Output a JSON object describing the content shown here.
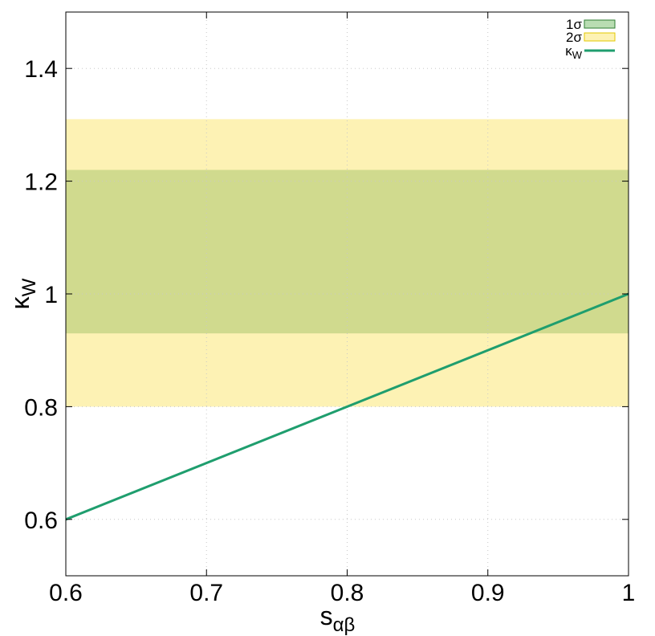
{
  "chart_data": {
    "type": "line",
    "xlabel": {
      "base": "s",
      "sub": "αβ"
    },
    "ylabel": {
      "base": "κ",
      "sub": "W"
    },
    "xlim": [
      0.6,
      1.0
    ],
    "ylim": [
      0.5,
      1.5
    ],
    "xticks": [
      0.6,
      0.7,
      0.8,
      0.9,
      1.0
    ],
    "xtick_labels": [
      "0.6",
      "0.7",
      "0.8",
      "0.9",
      "1"
    ],
    "yticks": [
      0.6,
      0.8,
      1.0,
      1.2,
      1.4
    ],
    "ytick_labels": [
      "0.6",
      "0.8",
      "1",
      "1.2",
      "1.4"
    ],
    "grid": true,
    "legend_position": "top-right",
    "bands": [
      {
        "name": "2σ",
        "y_low": 0.8,
        "y_high": 1.31,
        "color": "#fdf2b4"
      },
      {
        "name": "1σ",
        "y_low": 0.93,
        "y_high": 1.22,
        "color": "#d0da8e",
        "legend_color": "#b9ddb2"
      }
    ],
    "series": [
      {
        "name": "κW",
        "legend_base": "κ",
        "legend_sub": "W",
        "x": [
          0.6,
          1.0
        ],
        "y": [
          0.6,
          1.0
        ],
        "color": "#1f9e6e"
      }
    ],
    "legend": [
      {
        "label": "1σ",
        "kind": "box",
        "color": "#b9ddb2",
        "edge": "#2e7d32"
      },
      {
        "label": "2σ",
        "kind": "box",
        "color": "#fdf2b4",
        "edge": "#e3c800"
      },
      {
        "label": "κW",
        "base": "κ",
        "sub": "W",
        "kind": "line",
        "color": "#1f9e6e"
      }
    ]
  }
}
